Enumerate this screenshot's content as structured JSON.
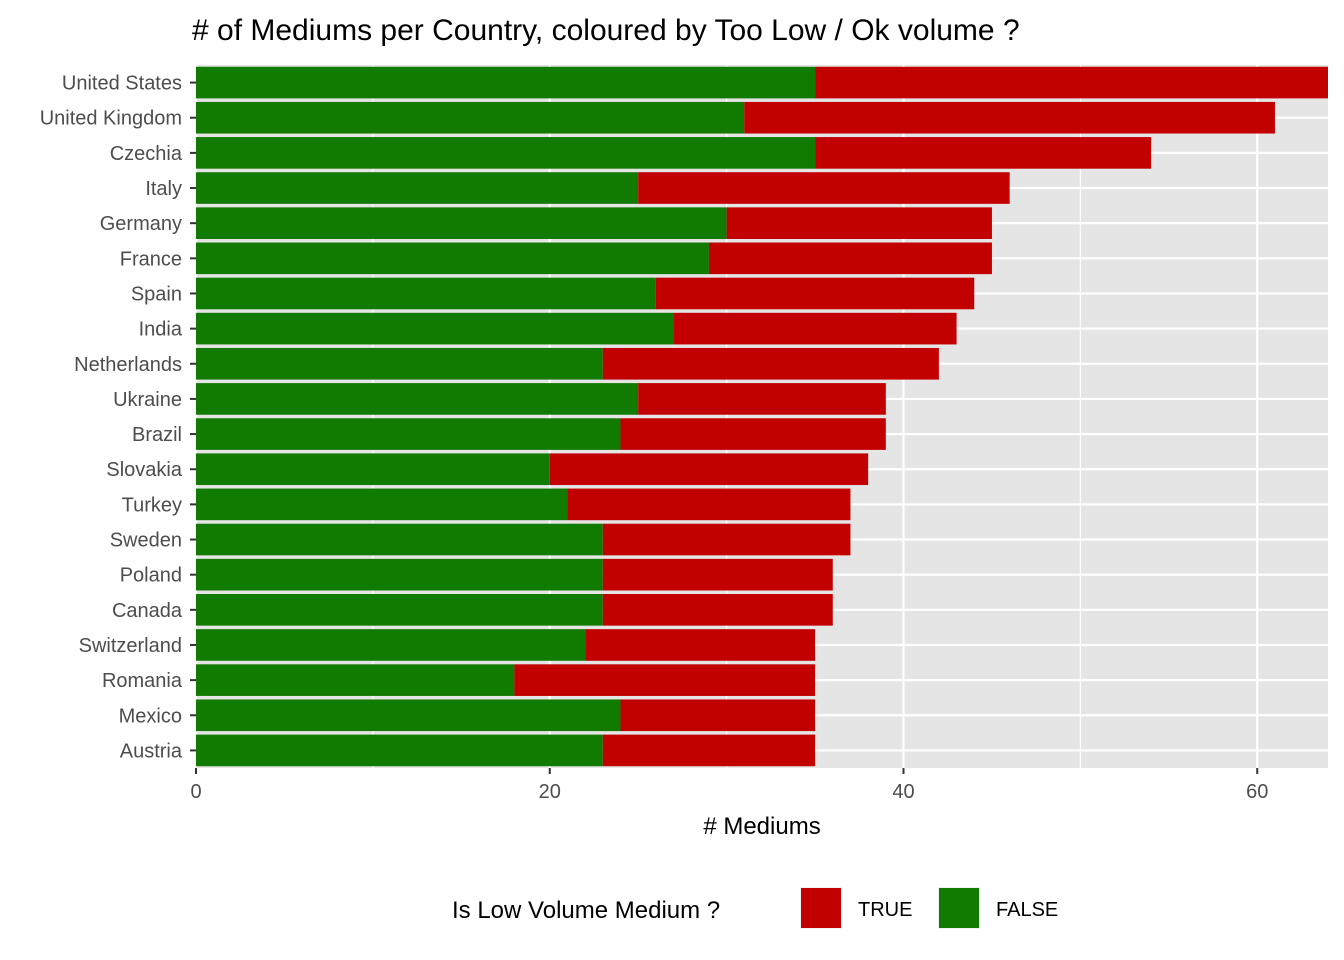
{
  "chart_data": {
    "type": "bar",
    "orientation": "horizontal",
    "stacked": true,
    "title": "# of Mediums per Country, coloured by Too Low / Ok volume ?",
    "xlabel": "# Mediums",
    "ylabel": "",
    "xlim": [
      0,
      64
    ],
    "x_ticks": [
      0,
      20,
      40,
      60
    ],
    "x_tick_labels": [
      "0",
      "20",
      "40",
      "60"
    ],
    "grid": true,
    "legend_position": "bottom",
    "legend_title": "Is Low Volume Medium ?",
    "categories": [
      "United States",
      "United Kingdom",
      "Czechia",
      "Italy",
      "Germany",
      "France",
      "Spain",
      "India",
      "Netherlands",
      "Ukraine",
      "Brazil",
      "Slovakia",
      "Turkey",
      "Sweden",
      "Poland",
      "Canada",
      "Switzerland",
      "Romania",
      "Mexico",
      "Austria"
    ],
    "series": [
      {
        "name": "FALSE",
        "color": "#117a00",
        "values": [
          35,
          31,
          35,
          25,
          30,
          29,
          26,
          27,
          23,
          25,
          24,
          20,
          21,
          23,
          23,
          23,
          22,
          18,
          24,
          23
        ]
      },
      {
        "name": "TRUE",
        "color": "#c20000",
        "values": [
          29,
          30,
          19,
          21,
          15,
          16,
          18,
          16,
          19,
          14,
          15,
          18,
          16,
          14,
          13,
          13,
          13,
          17,
          11,
          12
        ]
      }
    ],
    "legend_order": [
      "TRUE",
      "FALSE"
    ],
    "panel_background": "#e5e5e5",
    "grid_color": "#ffffff"
  }
}
